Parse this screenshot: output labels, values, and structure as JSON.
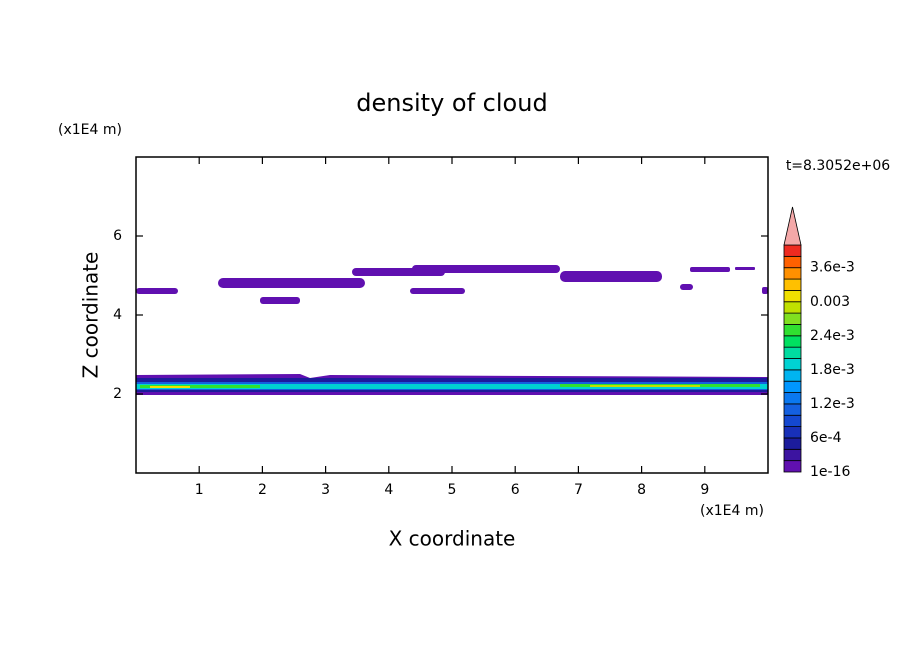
{
  "chart_data": {
    "type": "contour",
    "title": "density of cloud",
    "x_label": "X coordinate",
    "y_label": "Z coordinate",
    "x_unit": "(x1E4 m)",
    "y_unit": "(x1E4 m)",
    "annotation": "t=8.3052e+06",
    "xlim": [
      0,
      10
    ],
    "ylim": [
      0,
      8
    ],
    "xticks": [
      1,
      2,
      3,
      4,
      5,
      6,
      7,
      8,
      9
    ],
    "yticks": [
      2,
      4,
      6
    ],
    "colorbar": {
      "levels": [
        1e-16,
        0.0002,
        0.0004,
        0.0006,
        0.0008,
        0.001,
        0.0012,
        0.0014,
        0.0016,
        0.0018,
        0.002,
        0.0022,
        0.0024,
        0.0026,
        0.0028,
        0.003,
        0.0032,
        0.0034,
        0.0036,
        0.0038,
        0.004
      ],
      "colors": [
        "#6010b0",
        "#3c14a0",
        "#1c1c9c",
        "#1830b8",
        "#1448d0",
        "#1460e0",
        "#0a78f0",
        "#0096ff",
        "#00b4f0",
        "#00d2d2",
        "#00dca0",
        "#00e060",
        "#30e030",
        "#80e020",
        "#c0e000",
        "#f0e000",
        "#ffc000",
        "#ff9000",
        "#ff6000",
        "#ee2a20"
      ],
      "extend_color": "#f4a8a8",
      "ticks": [
        1e-16,
        {
          "value": 0.0006,
          "label": "6e-4"
        },
        {
          "value": 0.0012,
          "label": "1.2e-3"
        },
        {
          "value": 0.0018,
          "label": "1.8e-3"
        },
        {
          "value": 0.0024,
          "label": "2.4e-3"
        },
        0.003,
        {
          "value": 0.0036,
          "label": "3.6e-3"
        }
      ]
    }
  }
}
